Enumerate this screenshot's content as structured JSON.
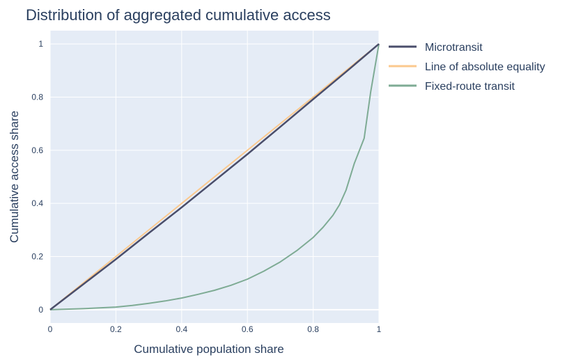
{
  "chart_data": {
    "type": "line",
    "title": "Distribution of aggregated cumulative access",
    "xlabel": "Cumulative population share",
    "ylabel": "Cumulative access share",
    "xlim": [
      0,
      1
    ],
    "ylim": [
      -0.05,
      1.05
    ],
    "x_ticks": [
      0,
      0.2,
      0.4,
      0.6,
      0.8,
      1
    ],
    "x_tick_labels": [
      "0",
      "0.2",
      "0.4",
      "0.6",
      "0.8",
      "1"
    ],
    "y_ticks": [
      0,
      0.2,
      0.4,
      0.6,
      0.8,
      1
    ],
    "y_tick_labels": [
      "0",
      "0.2",
      "0.4",
      "0.6",
      "0.8",
      "1"
    ],
    "grid": true,
    "legend_position": "right",
    "colors": {
      "plot_background": "#e5ecf6",
      "grid": "#ffffff",
      "text": "#2a3f5f"
    },
    "series": [
      {
        "name": "Microtransit",
        "color": "#4a4e6b",
        "x": [
          0,
          0.1,
          0.2,
          0.3,
          0.4,
          0.5,
          0.6,
          0.7,
          0.8,
          0.9,
          1
        ],
        "y": [
          0,
          0.095,
          0.19,
          0.288,
          0.385,
          0.485,
          0.585,
          0.688,
          0.792,
          0.895,
          1
        ]
      },
      {
        "name": "Line of absolute equality",
        "color": "#fbc98e",
        "x": [
          0,
          1
        ],
        "y": [
          0,
          1
        ]
      },
      {
        "name": "Fixed-route transit",
        "color": "#7eab94",
        "x": [
          0,
          0.1,
          0.2,
          0.25,
          0.3,
          0.35,
          0.4,
          0.45,
          0.5,
          0.55,
          0.6,
          0.65,
          0.7,
          0.75,
          0.8,
          0.83,
          0.86,
          0.88,
          0.9,
          0.925,
          0.955,
          0.975,
          1
        ],
        "y": [
          0,
          0.004,
          0.01,
          0.016,
          0.024,
          0.033,
          0.044,
          0.058,
          0.073,
          0.092,
          0.115,
          0.145,
          0.18,
          0.222,
          0.272,
          0.31,
          0.355,
          0.395,
          0.45,
          0.55,
          0.645,
          0.82,
          1
        ]
      }
    ]
  }
}
